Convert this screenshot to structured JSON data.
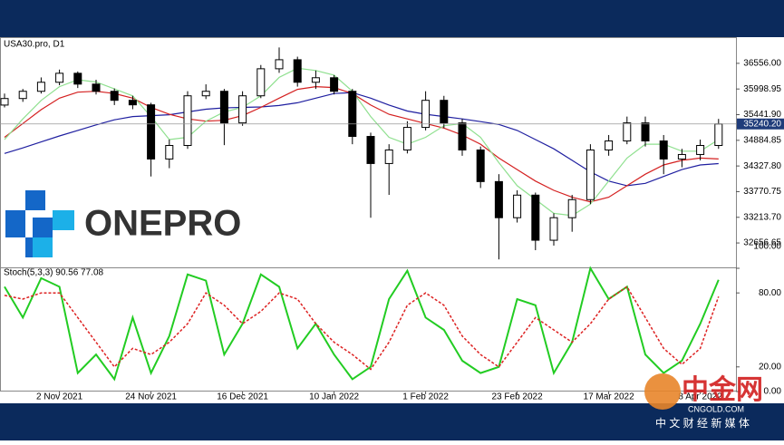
{
  "chart_data": [
    {
      "type": "candlestick",
      "title": "USA30.pro, D1",
      "categories": [
        null,
        null,
        null,
        "2 Nov 2021",
        null,
        null,
        null,
        null,
        "24 Nov 2021",
        null,
        null,
        null,
        null,
        "16 Dec 2021",
        null,
        null,
        null,
        null,
        "10 Jan 2022",
        null,
        null,
        null,
        null,
        "1 Feb 2022",
        null,
        null,
        null,
        null,
        "23 Feb 2022",
        null,
        null,
        null,
        null,
        "17 Mar 2022",
        null,
        null,
        null,
        null,
        "8 Apr 2022",
        null
      ],
      "candles": [
        [
          35650,
          35900,
          35600,
          35792
        ],
        [
          35792,
          36000,
          35720,
          35949
        ],
        [
          35949,
          36250,
          35900,
          36145
        ],
        [
          36145,
          36420,
          36080,
          36340
        ],
        [
          36340,
          36380,
          36020,
          36105
        ],
        [
          36105,
          36200,
          35880,
          35949
        ],
        [
          35949,
          36010,
          35650,
          35753
        ],
        [
          35753,
          35850,
          35560,
          35655
        ],
        [
          35655,
          35700,
          34100,
          34479
        ],
        [
          34479,
          34900,
          34280,
          34773
        ],
        [
          34773,
          35950,
          34700,
          35851
        ],
        [
          35851,
          36100,
          35780,
          35949
        ],
        [
          35949,
          36000,
          34780,
          35263
        ],
        [
          35263,
          35950,
          35200,
          35851
        ],
        [
          35851,
          36520,
          35800,
          36438
        ],
        [
          36438,
          36900,
          36350,
          36634
        ],
        [
          36634,
          36700,
          36050,
          36145
        ],
        [
          36145,
          36400,
          36000,
          36243
        ],
        [
          36243,
          36300,
          35880,
          35949
        ],
        [
          35949,
          36000,
          34800,
          34969
        ],
        [
          34969,
          35050,
          33205,
          34381
        ],
        [
          34381,
          34800,
          33700,
          34675
        ],
        [
          34675,
          35300,
          34600,
          35165
        ],
        [
          35165,
          35950,
          35100,
          35753
        ],
        [
          35753,
          35850,
          35150,
          35263
        ],
        [
          35263,
          35350,
          34550,
          34675
        ],
        [
          34675,
          34750,
          33850,
          33989
        ],
        [
          33989,
          34150,
          32300,
          33205
        ],
        [
          33205,
          33800,
          33100,
          33695
        ],
        [
          33695,
          33750,
          32500,
          32716
        ],
        [
          32716,
          33300,
          32600,
          33205
        ],
        [
          33205,
          33700,
          32900,
          33597
        ],
        [
          33597,
          34800,
          33500,
          34675
        ],
        [
          34675,
          35000,
          34550,
          34871
        ],
        [
          34871,
          35400,
          34800,
          35263
        ],
        [
          35263,
          35400,
          34750,
          34871
        ],
        [
          34871,
          35000,
          34150,
          34479
        ],
        [
          34479,
          34700,
          34300,
          34577
        ],
        [
          34577,
          34900,
          34450,
          34773
        ],
        [
          34773,
          35350,
          34700,
          35240.2
        ]
      ],
      "series": [
        {
          "color": "#1f1fa0",
          "values": [
            34600,
            34720,
            34850,
            34980,
            35100,
            35220,
            35330,
            35400,
            35420,
            35440,
            35500,
            35560,
            35590,
            35600,
            35610,
            35640,
            35700,
            35800,
            35900,
            35920,
            35800,
            35650,
            35520,
            35450,
            35400,
            35350,
            35290,
            35230,
            35100,
            34900,
            34700,
            34450,
            34200,
            34000,
            33900,
            33950,
            34100,
            34250,
            34350,
            34380
          ]
        },
        {
          "color": "#d42020",
          "values": [
            34950,
            35250,
            35550,
            35800,
            35930,
            35950,
            35900,
            35800,
            35600,
            35450,
            35350,
            35300,
            35320,
            35420,
            35600,
            35800,
            35990,
            36050,
            36030,
            35900,
            35650,
            35450,
            35350,
            35250,
            35150,
            35000,
            34800,
            34500,
            34250,
            34000,
            33800,
            33650,
            33550,
            33650,
            33900,
            34150,
            34350,
            34450,
            34500,
            34480
          ]
        },
        {
          "color": "#8fe08f",
          "values": [
            34900,
            35350,
            35750,
            36050,
            36200,
            36150,
            36000,
            35850,
            35400,
            34900,
            34950,
            35300,
            35500,
            35600,
            35850,
            36250,
            36450,
            36400,
            36300,
            35950,
            35400,
            34950,
            34800,
            34950,
            35200,
            35250,
            34950,
            34400,
            33900,
            33600,
            33300,
            33250,
            33500,
            34000,
            34500,
            34800,
            34800,
            34650,
            34650,
            34900
          ]
        }
      ],
      "last_price": {
        "value": 35240.2,
        "label": "35240.20"
      },
      "ylim": [
        32127,
        37124
      ],
      "yticks": [
        {
          "value": 36556,
          "label": "36556.00"
        },
        {
          "value": 35998.95,
          "label": "35998.95"
        },
        {
          "value": 35441.9,
          "label": "35441.90"
        },
        {
          "value": 34884.85,
          "label": "34884.85"
        },
        {
          "value": 34327.8,
          "label": "34327.80"
        },
        {
          "value": 33770.75,
          "label": "33770.75"
        },
        {
          "value": 33213.7,
          "label": "33213.70"
        },
        {
          "value": 32656.65,
          "label": "32656.65"
        }
      ]
    },
    {
      "type": "line",
      "title": "Stoch(5,3,3) 90.56 77.08",
      "series": [
        {
          "color": "#22cc22",
          "style": "solid",
          "values": [
            85,
            60,
            92,
            85,
            15,
            30,
            10,
            60,
            15,
            45,
            95,
            90,
            30,
            55,
            95,
            85,
            35,
            55,
            30,
            10,
            20,
            75,
            98,
            60,
            50,
            25,
            15,
            20,
            75,
            70,
            15,
            40,
            100,
            75,
            85,
            30,
            15,
            25,
            55,
            90.56
          ]
        },
        {
          "color": "#dd2222",
          "style": "dashed",
          "values": [
            78,
            75,
            80,
            80,
            60,
            40,
            20,
            35,
            30,
            40,
            55,
            80,
            70,
            55,
            65,
            80,
            75,
            55,
            40,
            30,
            18,
            40,
            70,
            80,
            70,
            45,
            30,
            20,
            40,
            60,
            50,
            40,
            55,
            75,
            85,
            60,
            35,
            22,
            35,
            77.08
          ]
        }
      ],
      "ylim": [
        0,
        100
      ],
      "yticks": [
        {
          "value": 100,
          "label": "100.00"
        },
        {
          "value": 80,
          "label": "80.00"
        },
        {
          "value": 20,
          "label": "20.00"
        },
        {
          "value": 0,
          "label": "0.00"
        }
      ]
    }
  ],
  "logo": {
    "text": "ONEPRO"
  },
  "watermark": {
    "name": "中金网",
    "domain": "CNGOLD.COM",
    "slogan": "中 文 财 经 新 媒 体"
  }
}
